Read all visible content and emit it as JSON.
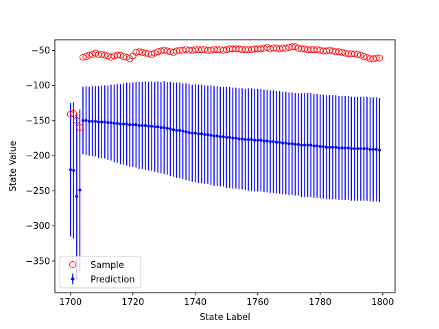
{
  "chart_data": {
    "type": "scatter",
    "title": "",
    "xlabel": "State Label",
    "ylabel": "State Value",
    "xlim": [
      1695,
      1804
    ],
    "ylim": [
      -395,
      -35
    ],
    "xticks": [
      1700,
      1720,
      1740,
      1760,
      1780,
      1800
    ],
    "yticks": [
      -350,
      -300,
      -250,
      -200,
      -150,
      -100,
      -50
    ],
    "legend_position": "lower-left",
    "series": [
      {
        "name": "Sample",
        "kind": "scatter-hollow",
        "color": "#ff0000",
        "x_start": 1700,
        "x_step": 1,
        "values": [
          -141,
          -140,
          -150,
          -160,
          -60,
          -59,
          -57,
          -56,
          -54,
          -56,
          -56,
          -57,
          -58,
          -60,
          -58,
          -57,
          -57,
          -59,
          -60,
          -62,
          -58,
          -53,
          -52,
          -53,
          -54,
          -55,
          -56,
          -54,
          -52,
          -51,
          -50,
          -51,
          -52,
          -53,
          -51,
          -50,
          -50,
          -49,
          -50,
          -50,
          -49,
          -49,
          -49,
          -49,
          -50,
          -50,
          -49,
          -49,
          -49,
          -50,
          -49,
          -48,
          -48,
          -48,
          -48,
          -49,
          -49,
          -49,
          -49,
          -48,
          -48,
          -48,
          -47,
          -46,
          -48,
          -47,
          -47,
          -48,
          -47,
          -47,
          -46,
          -45,
          -45,
          -47,
          -48,
          -48,
          -49,
          -49,
          -49,
          -49,
          -50,
          -51,
          -51,
          -50,
          -51,
          -52,
          -52,
          -53,
          -54,
          -55,
          -55,
          -55,
          -56,
          -57,
          -59,
          -60,
          -62,
          -62,
          -61,
          -61
        ]
      },
      {
        "name": "Prediction",
        "kind": "errorbar",
        "color": "#0000ff",
        "x_start": 1700,
        "x_step": 1,
        "values": [
          -220,
          -221,
          -258,
          -249,
          -150,
          -150,
          -151,
          -151,
          -151,
          -152,
          -152,
          -152,
          -153,
          -153,
          -154,
          -154,
          -155,
          -155,
          -155,
          -156,
          -156,
          -156,
          -157,
          -157,
          -157,
          -158,
          -158,
          -159,
          -159,
          -160,
          -160,
          -161,
          -162,
          -163,
          -164,
          -164,
          -165,
          -166,
          -167,
          -168,
          -168,
          -169,
          -169,
          -170,
          -170,
          -171,
          -172,
          -172,
          -173,
          -173,
          -174,
          -174,
          -175,
          -175,
          -176,
          -176,
          -177,
          -177,
          -177,
          -178,
          -178,
          -178,
          -179,
          -179,
          -180,
          -180,
          -181,
          -181,
          -182,
          -182,
          -183,
          -183,
          -184,
          -184,
          -185,
          -185,
          -185,
          -185,
          -186,
          -186,
          -187,
          -187,
          -188,
          -188,
          -188,
          -188,
          -189,
          -189,
          -189,
          -189,
          -190,
          -190,
          -190,
          -190,
          -190,
          -190,
          -191,
          -191,
          -191,
          -192
        ],
        "errors": [
          95,
          97,
          118,
          115,
          48,
          49,
          49,
          50,
          50,
          51,
          52,
          52,
          53,
          54,
          55,
          56,
          57,
          58,
          59,
          60,
          60,
          61,
          62,
          62,
          63,
          63,
          64,
          64,
          65,
          65,
          66,
          66,
          67,
          67,
          68,
          68,
          68,
          69,
          69,
          69,
          70,
          70,
          70,
          70,
          70,
          71,
          71,
          71,
          71,
          71,
          72,
          72,
          72,
          72,
          72,
          72,
          72,
          73,
          73,
          73,
          73,
          73,
          73,
          73,
          73,
          73,
          73,
          73,
          73,
          73,
          73,
          73,
          73,
          73,
          74,
          74,
          74,
          74,
          74,
          74,
          74,
          74,
          74,
          74,
          74,
          74,
          74,
          74,
          74,
          74,
          74,
          74,
          74,
          74,
          74,
          74,
          74,
          74,
          74,
          74
        ]
      }
    ]
  }
}
